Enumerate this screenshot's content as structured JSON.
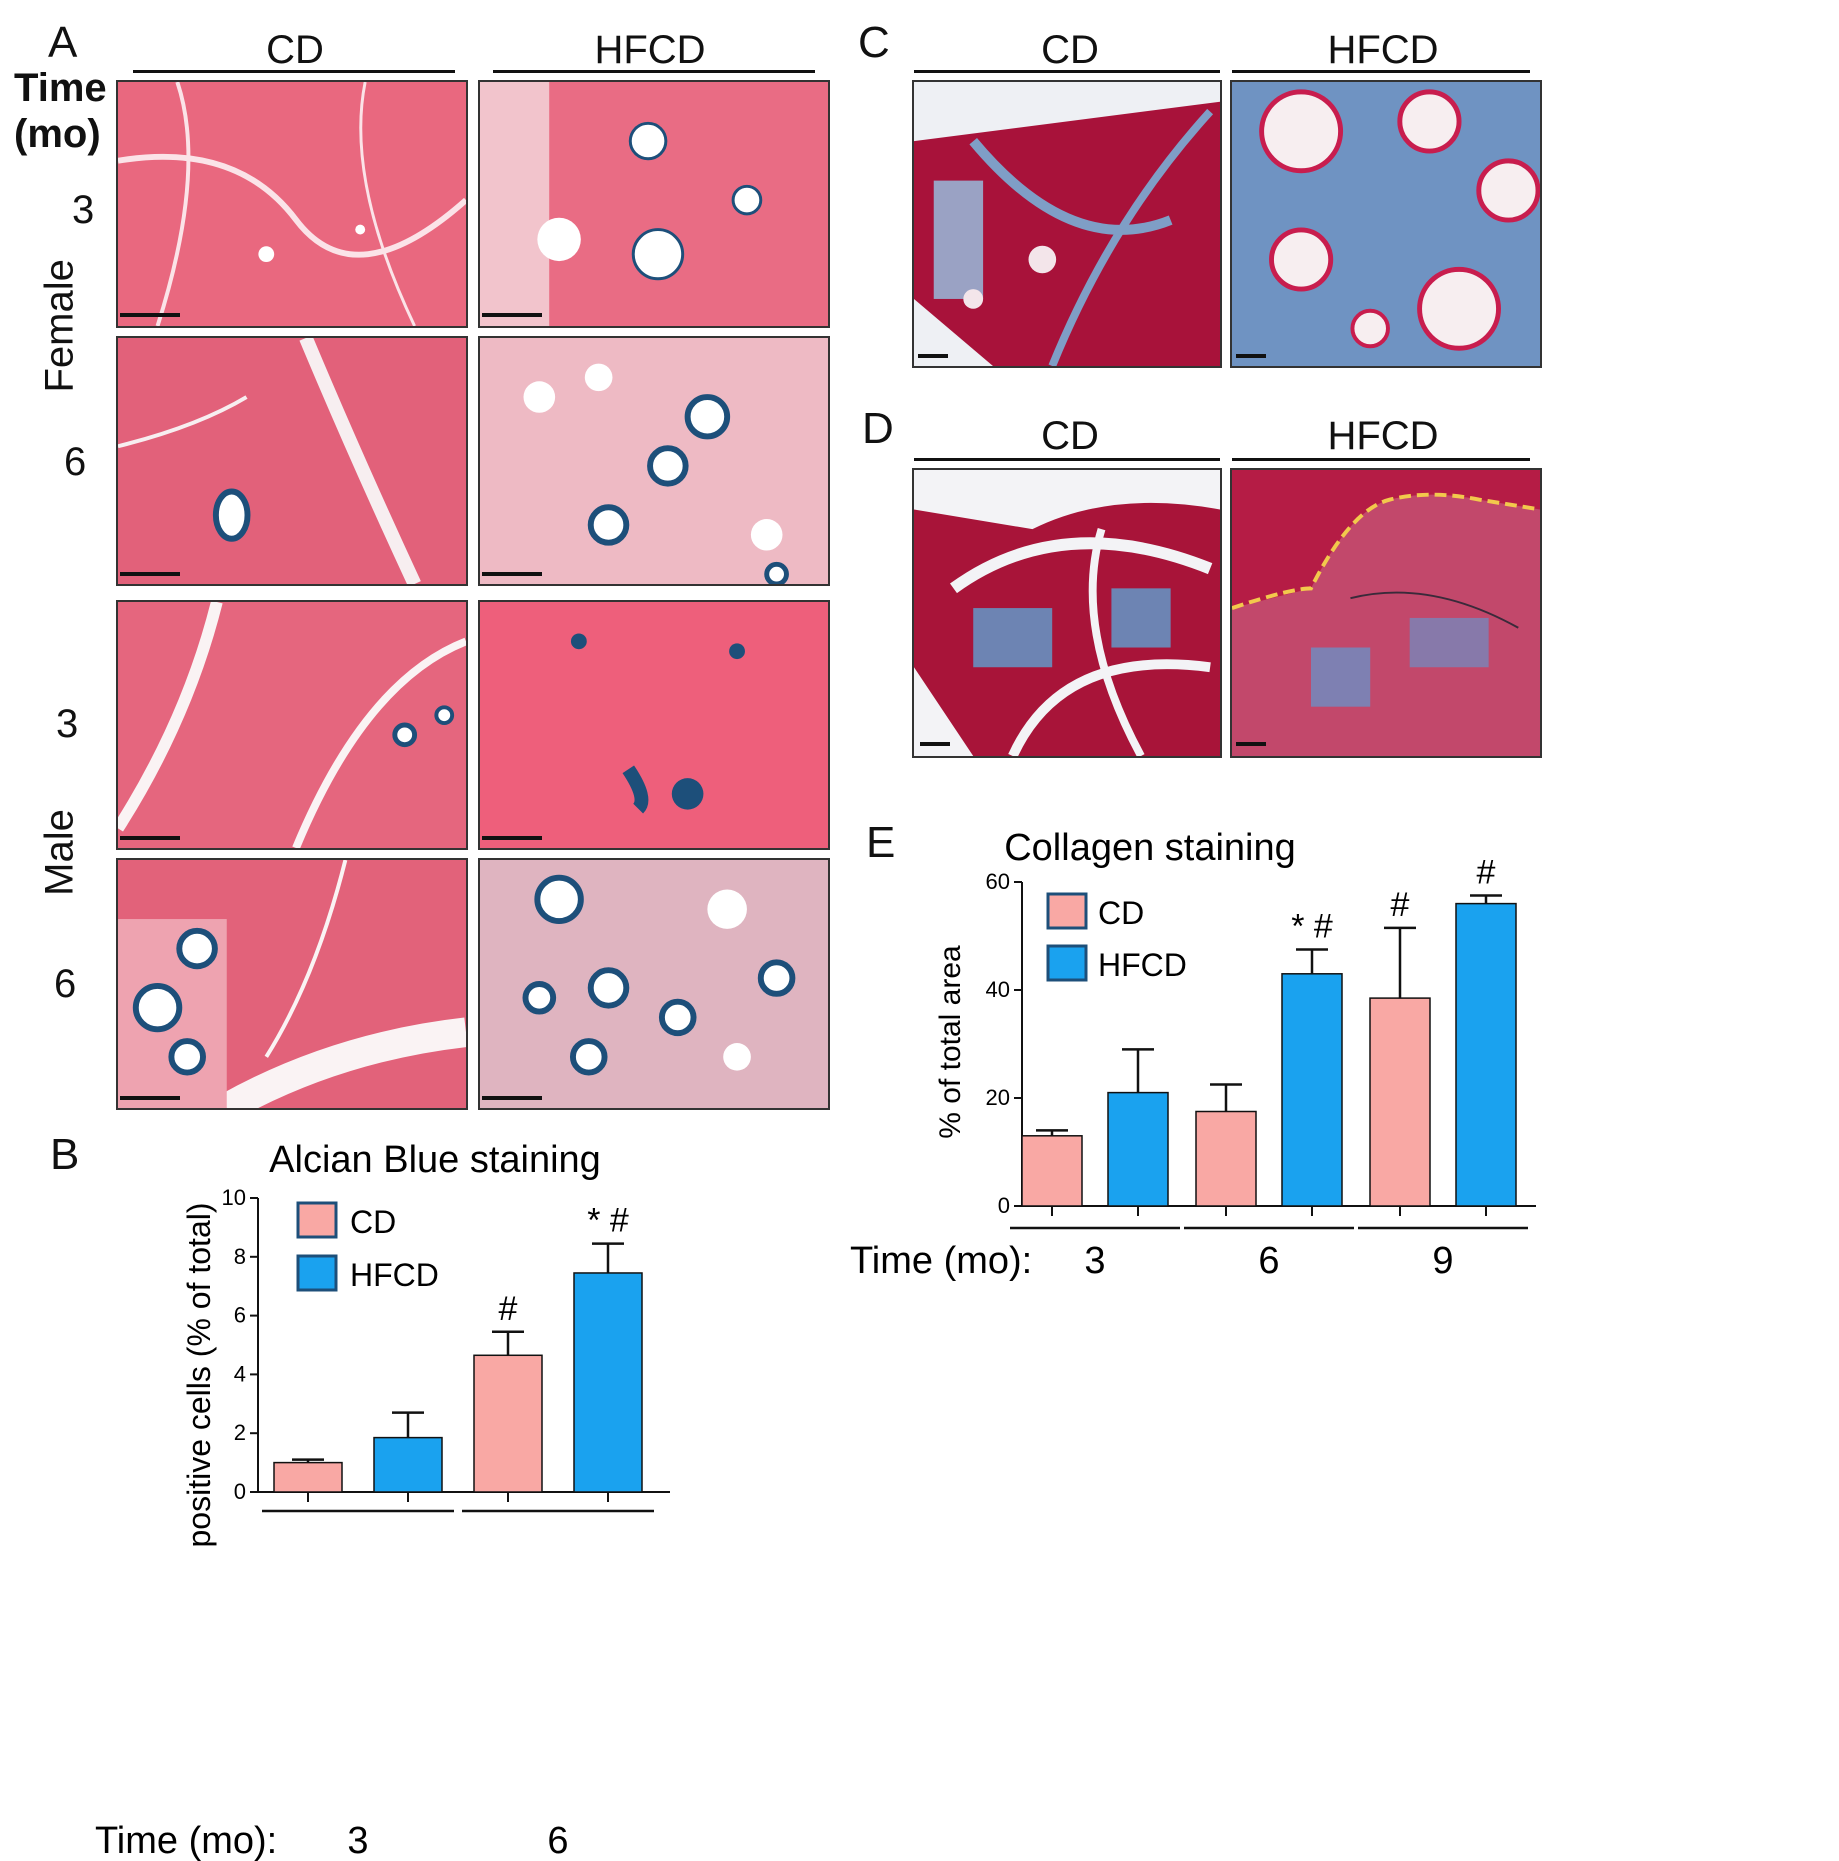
{
  "panels": {
    "A": {
      "letter": "A",
      "col_cd": "CD",
      "col_hfcd": "HFCD",
      "time_label_line1": "Time",
      "time_label_line2": "(mo)",
      "group_female": "Female",
      "group_male": "Male",
      "rows": [
        "3",
        "6",
        "3",
        "6"
      ]
    },
    "B": {
      "letter": "B"
    },
    "C": {
      "letter": "C",
      "col_cd": "CD",
      "col_hfcd": "HFCD"
    },
    "D": {
      "letter": "D",
      "col_cd": "CD",
      "col_hfcd": "HFCD"
    },
    "E": {
      "letter": "E"
    }
  },
  "colors": {
    "cd": "#f9a8a4",
    "hfcd": "#1aa2ef",
    "he_pink": "#e85f7c",
    "alcian_blue": "#1d4f7a",
    "trichrome_red": "#a8123a",
    "collagen_blue": "#5a84b8",
    "boundary": "#f2c94c"
  },
  "chart_data": [
    {
      "type": "bar",
      "title": "Alcian Blue staining",
      "ylabel": "positive cells (% of total)",
      "xlabel_prefix": "Time (mo):",
      "ylim": [
        0,
        10
      ],
      "yticks": [
        "0",
        "2",
        "4",
        "6",
        "8",
        "10"
      ],
      "categories": [
        "3",
        "6"
      ],
      "series": [
        {
          "name": "CD",
          "values": [
            1.0,
            4.65
          ],
          "errors": [
            0.1,
            0.8
          ]
        },
        {
          "name": "HFCD",
          "values": [
            1.85,
            7.45
          ],
          "errors": [
            0.85,
            1.0
          ]
        }
      ],
      "annotations": [
        {
          "category": "6",
          "series": "CD",
          "text": "#"
        },
        {
          "category": "6",
          "series": "HFCD",
          "text": "* #"
        }
      ]
    },
    {
      "type": "bar",
      "title": "Collagen staining",
      "ylabel": "% of total area",
      "xlabel_prefix": "Time (mo):",
      "ylim": [
        0,
        60
      ],
      "yticks": [
        "0",
        "20",
        "40",
        "60"
      ],
      "categories": [
        "3",
        "6",
        "9"
      ],
      "series": [
        {
          "name": "CD",
          "values": [
            13,
            17.5,
            38.5
          ],
          "errors": [
            1,
            5,
            13
          ]
        },
        {
          "name": "HFCD",
          "values": [
            21,
            43,
            56
          ],
          "errors": [
            8,
            4.5,
            1.5
          ]
        }
      ],
      "annotations": [
        {
          "category": "6",
          "series": "HFCD",
          "text": "* #"
        },
        {
          "category": "9",
          "series": "CD",
          "text": "#"
        },
        {
          "category": "9",
          "series": "HFCD",
          "text": "#"
        }
      ]
    }
  ]
}
